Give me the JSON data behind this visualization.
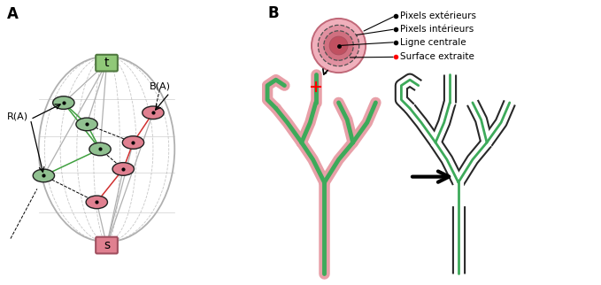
{
  "panel_A_label": "A",
  "panel_B_label": "B",
  "node_t_label": "t",
  "node_s_label": "s",
  "label_RA": "R(A)",
  "label_BA": "B(A)",
  "green_node_color": "#90c090",
  "pink_node_color": "#e08090",
  "node_edge_color": "#202020",
  "t_box_color": "#90c878",
  "s_box_color": "#e08090",
  "t_box_edge": "#507840",
  "s_box_edge": "#a05060",
  "green_line_color": "#40a040",
  "red_line_color": "#d03030",
  "gray_line_color": "#b0b0b0",
  "legend_labels": [
    "Pixels extérieurs",
    "Pixels intérieurs",
    "Ligne centrale",
    "Surface extraite"
  ],
  "circle_outer_fill": "#f0b0bc",
  "circle_outer_edge": "#c06878",
  "circle_mid_fill": "#e090a0",
  "circle_inner_fill": "#d07080",
  "circle_inner_edge": "#b05060",
  "vessel_pink": "#e8a0a8",
  "vessel_green": "#3daa5a",
  "vessel_dashed": "#282828",
  "background_color": "#ffffff"
}
